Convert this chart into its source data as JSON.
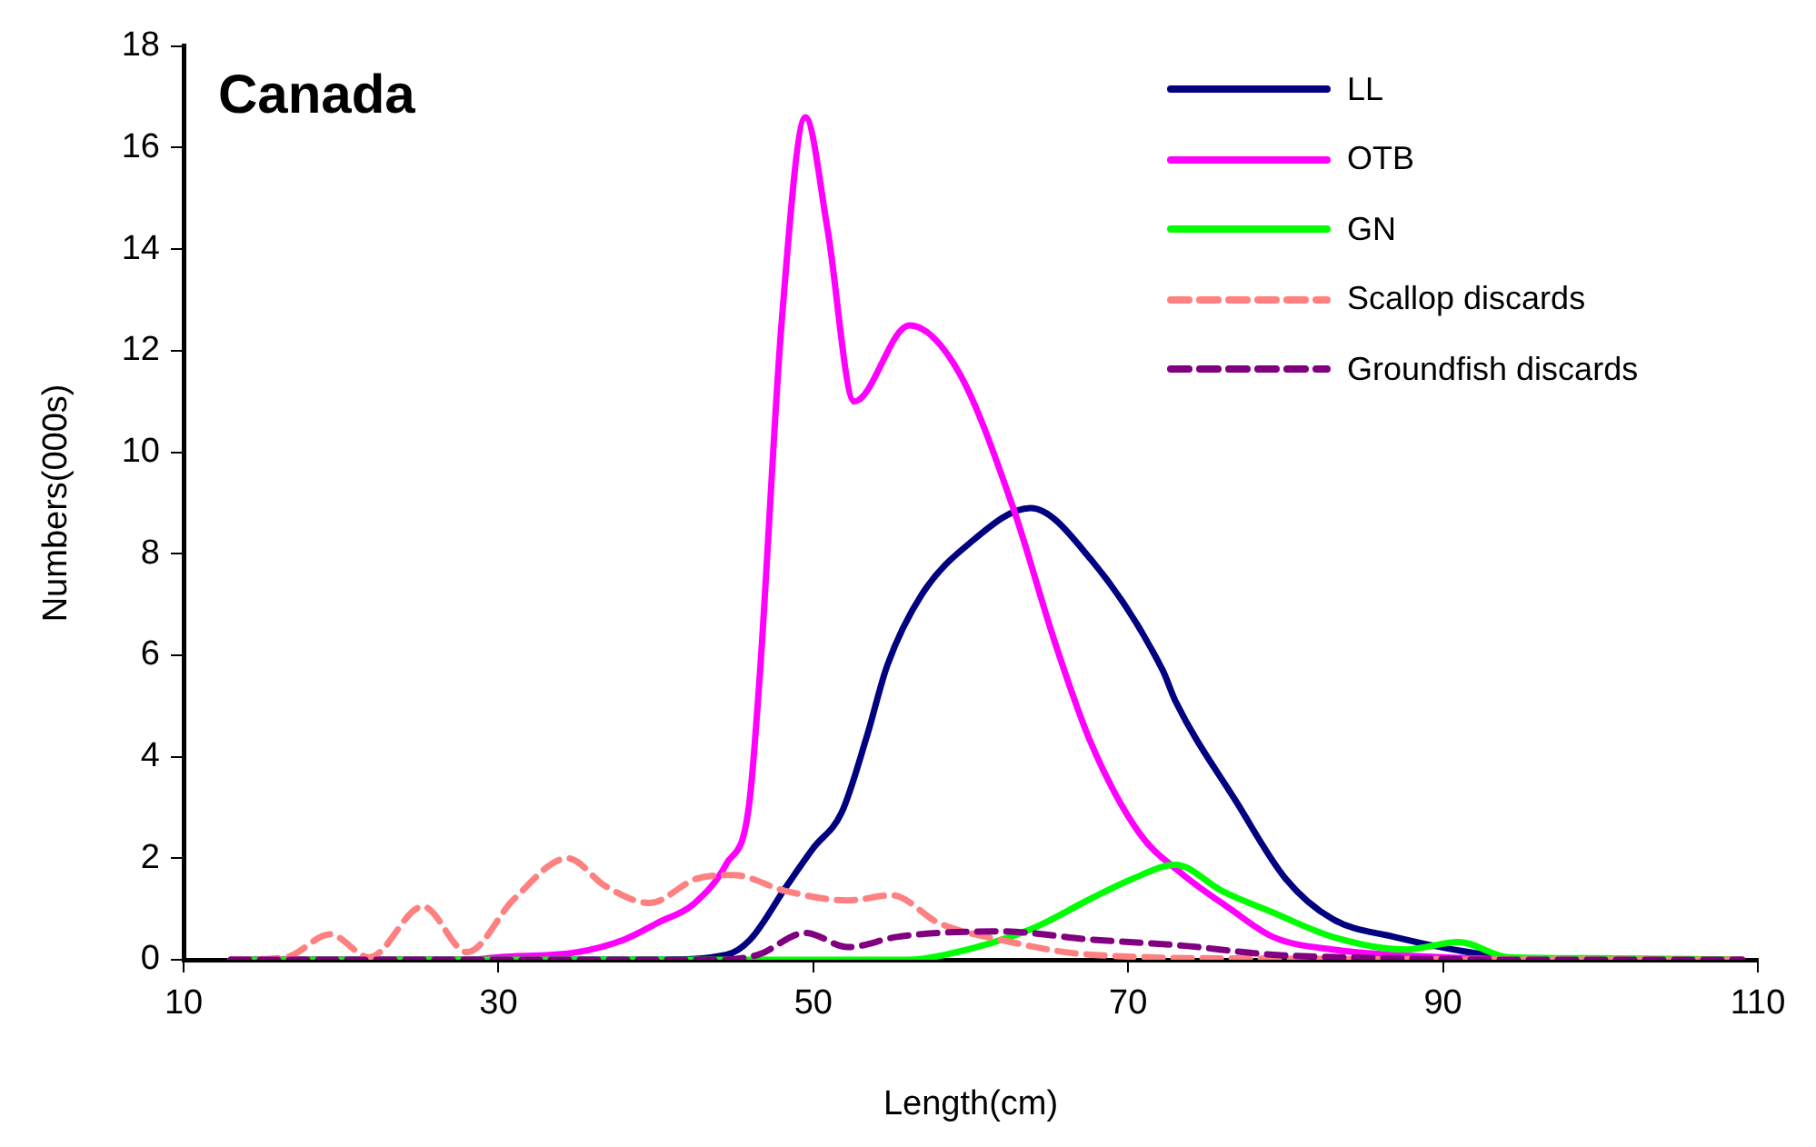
{
  "chart_data": {
    "type": "line",
    "title": "Canada",
    "xlabel": "Length(cm)",
    "ylabel": "Numbers(000s)",
    "xlim": [
      10,
      110
    ],
    "xticks": [
      10,
      30,
      50,
      70,
      90,
      110
    ],
    "ylim": [
      0,
      18
    ],
    "yticks": [
      0,
      2,
      4,
      6,
      8,
      10,
      12,
      14,
      16,
      18
    ],
    "grid": false,
    "legend": "top right",
    "marker": "none",
    "series": [
      {
        "name": "LL",
        "color": "#000080",
        "line_style": "solid",
        "x": [
          13,
          30,
          40,
          44.5,
          46,
          48.3,
          50,
          51.8,
          53.4,
          54.7,
          56.9,
          59.9,
          63.8,
          67.6,
          72.2,
          73,
          76.9,
          80,
          83,
          86.9,
          90.7,
          95,
          100,
          109
        ],
        "values": [
          0,
          0,
          0,
          0.1,
          0.4,
          1.45,
          2.2,
          2.9,
          4.4,
          5.8,
          7.2,
          8.2,
          8.9,
          7.9,
          5.7,
          5.1,
          3.1,
          1.6,
          0.8,
          0.45,
          0.2,
          0.02,
          0,
          0
        ]
      },
      {
        "name": "OTB",
        "color": "#ff00ff",
        "line_style": "solid",
        "x": [
          13,
          28,
          30,
          35,
          38,
          40.2,
          42.4,
          44.5,
          45.9,
          46.6,
          48,
          49.5,
          50.9,
          52.6,
          56.1,
          59.2,
          62.7,
          65.3,
          67.6,
          70.7,
          73.4,
          76.5,
          79.2,
          83,
          90,
          100,
          109
        ],
        "values": [
          0,
          0,
          0.05,
          0.15,
          0.4,
          0.74,
          1.1,
          1.9,
          3,
          5.6,
          12.6,
          16.6,
          14.4,
          11,
          12.5,
          11.6,
          8.9,
          6.3,
          4.3,
          2.5,
          1.7,
          1,
          0.45,
          0.2,
          0.05,
          0,
          0
        ]
      },
      {
        "name": "GN",
        "color": "#00ff00",
        "line_style": "solid",
        "x": [
          13,
          50,
          56,
          58.4,
          63.8,
          67.6,
          70.3,
          73,
          76,
          79.2,
          83,
          87.6,
          91,
          94.2,
          100,
          109
        ],
        "values": [
          0,
          0,
          0,
          0.1,
          0.6,
          1.2,
          1.6,
          1.87,
          1.35,
          0.93,
          0.45,
          0.2,
          0.35,
          0.05,
          0.03,
          0
        ]
      },
      {
        "name": "Scallop discards",
        "color": "#ff8080",
        "line_style": "dashed",
        "x": [
          13,
          16.5,
          19.3,
          21.8,
          25.2,
          28,
          31,
          34.4,
          36.8,
          39.6,
          42.6,
          44.9,
          48.3,
          52.2,
          55,
          58,
          61.8,
          67.6,
          80,
          109
        ],
        "values": [
          0,
          0.05,
          0.5,
          0.05,
          1.05,
          0.15,
          1.2,
          2,
          1.45,
          1.12,
          1.6,
          1.67,
          1.35,
          1.17,
          1.27,
          0.72,
          0.4,
          0.1,
          0.02,
          0
        ]
      },
      {
        "name": "Groundfish discards",
        "color": "#800080",
        "line_style": "dashed",
        "x": [
          13,
          44,
          46.5,
          49.5,
          52.2,
          55.3,
          58,
          61.8,
          67.6,
          73.4,
          79.2,
          87,
          95,
          109
        ],
        "values": [
          0,
          0,
          0.1,
          0.53,
          0.25,
          0.45,
          0.53,
          0.56,
          0.4,
          0.28,
          0.1,
          0.03,
          0,
          0
        ]
      }
    ]
  }
}
